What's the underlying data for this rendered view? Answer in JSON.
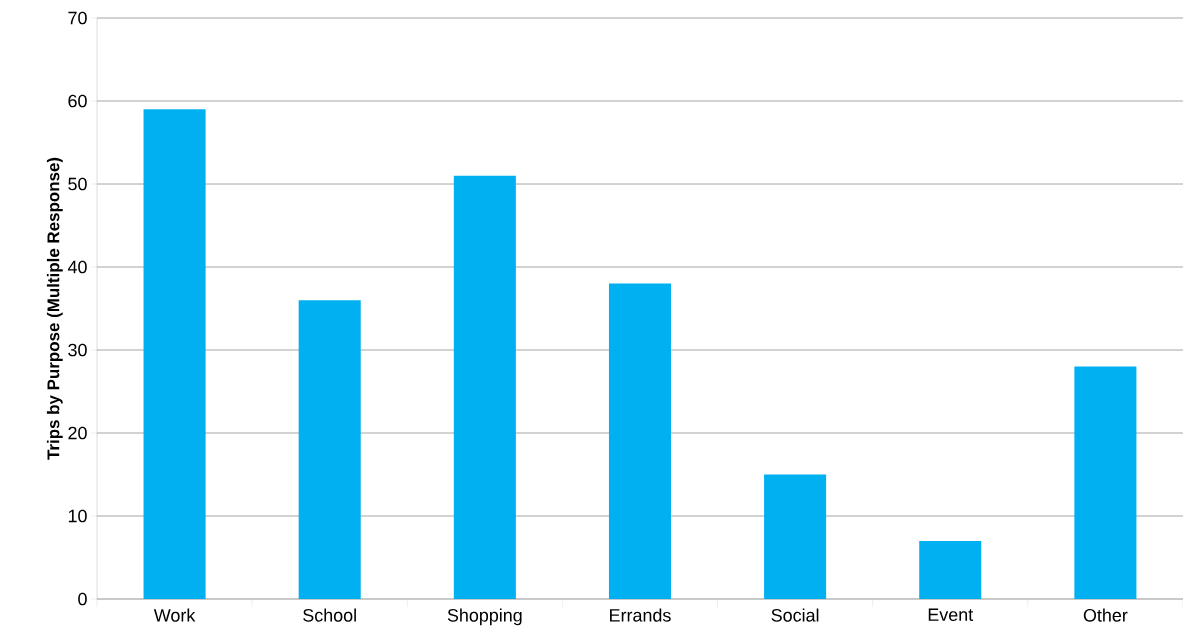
{
  "chart_data": {
    "type": "bar",
    "ylabel": "Trips by Purpose (Multiple Response)",
    "categories": [
      "Work",
      "School",
      "Shopping",
      "Errands",
      "Social",
      "Event",
      "Other"
    ],
    "values": [
      59,
      36,
      51,
      38,
      15,
      7,
      28
    ],
    "color": "#00b0f0",
    "ylim": [
      0,
      70
    ],
    "yticks": [
      0,
      10,
      20,
      30,
      40,
      50,
      60,
      70
    ],
    "grid": "y"
  }
}
